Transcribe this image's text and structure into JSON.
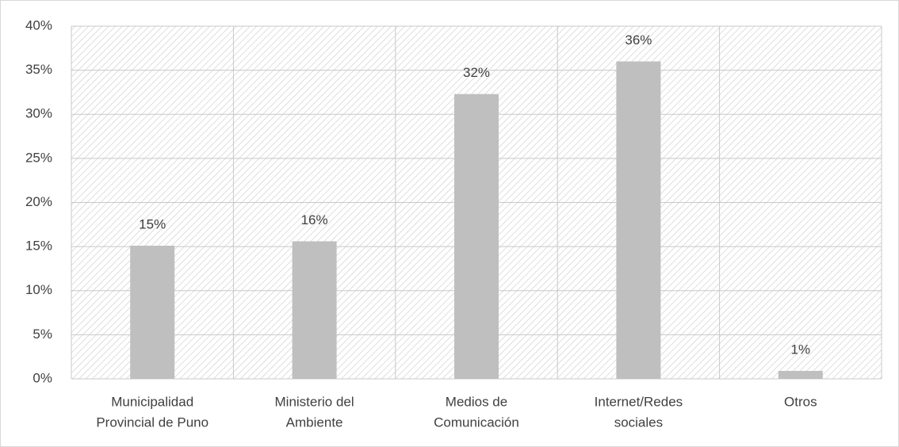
{
  "chart_data": {
    "type": "bar",
    "categories": [
      [
        "Municipalidad",
        "Provincial de Puno"
      ],
      [
        "Ministerio del",
        "Ambiente"
      ],
      [
        "Medios de",
        "Comunicación"
      ],
      [
        "Internet/Redes",
        "sociales"
      ],
      [
        "Otros"
      ]
    ],
    "values": [
      15.1,
      15.6,
      32.3,
      36,
      0.9
    ],
    "value_labels": [
      "15%",
      "16%",
      "32%",
      "36%",
      "1%"
    ],
    "color": "#bfbfbf",
    "ylim": [
      0,
      40
    ],
    "yticks": [
      {
        "value": 0,
        "label": "0%"
      },
      {
        "value": 5,
        "label": "5%"
      },
      {
        "value": 10,
        "label": "10%"
      },
      {
        "value": 15,
        "label": "15%"
      },
      {
        "value": 20,
        "label": "20%"
      },
      {
        "value": 25,
        "label": "25%"
      },
      {
        "value": 30,
        "label": "30%"
      },
      {
        "value": 35,
        "label": "35%"
      },
      {
        "value": 40,
        "label": "40%"
      }
    ],
    "grid": true
  }
}
